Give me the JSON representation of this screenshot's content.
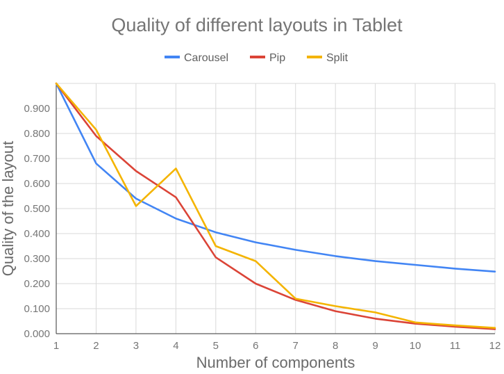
{
  "chart_data": {
    "type": "line",
    "title": "Quality of different layouts in Tablet",
    "xlabel": "Number of components",
    "ylabel": "Quality of the layout",
    "x": [
      1,
      2,
      3,
      4,
      5,
      6,
      7,
      8,
      9,
      10,
      11,
      12
    ],
    "xlim": [
      1,
      12
    ],
    "ylim": [
      0,
      1
    ],
    "x_ticks": [
      "1",
      "2",
      "3",
      "4",
      "5",
      "6",
      "7",
      "8",
      "9",
      "10",
      "11",
      "12"
    ],
    "y_ticks": [
      "0.000",
      "0.100",
      "0.200",
      "0.300",
      "0.400",
      "0.500",
      "0.600",
      "0.700",
      "0.800",
      "0.900"
    ],
    "grid": true,
    "legend_position": "top",
    "series": [
      {
        "name": "Carousel",
        "color": "#4285f4",
        "values": [
          1.0,
          0.68,
          0.54,
          0.46,
          0.405,
          0.365,
          0.335,
          0.31,
          0.29,
          0.275,
          0.26,
          0.248
        ]
      },
      {
        "name": "Pip",
        "color": "#db4437",
        "values": [
          1.0,
          0.79,
          0.65,
          0.545,
          0.305,
          0.2,
          0.135,
          0.09,
          0.06,
          0.04,
          0.028,
          0.018
        ]
      },
      {
        "name": "Split",
        "color": "#f4b400",
        "values": [
          1.0,
          0.815,
          0.51,
          0.66,
          0.35,
          0.29,
          0.14,
          0.11,
          0.085,
          0.045,
          0.033,
          0.023
        ]
      }
    ]
  }
}
